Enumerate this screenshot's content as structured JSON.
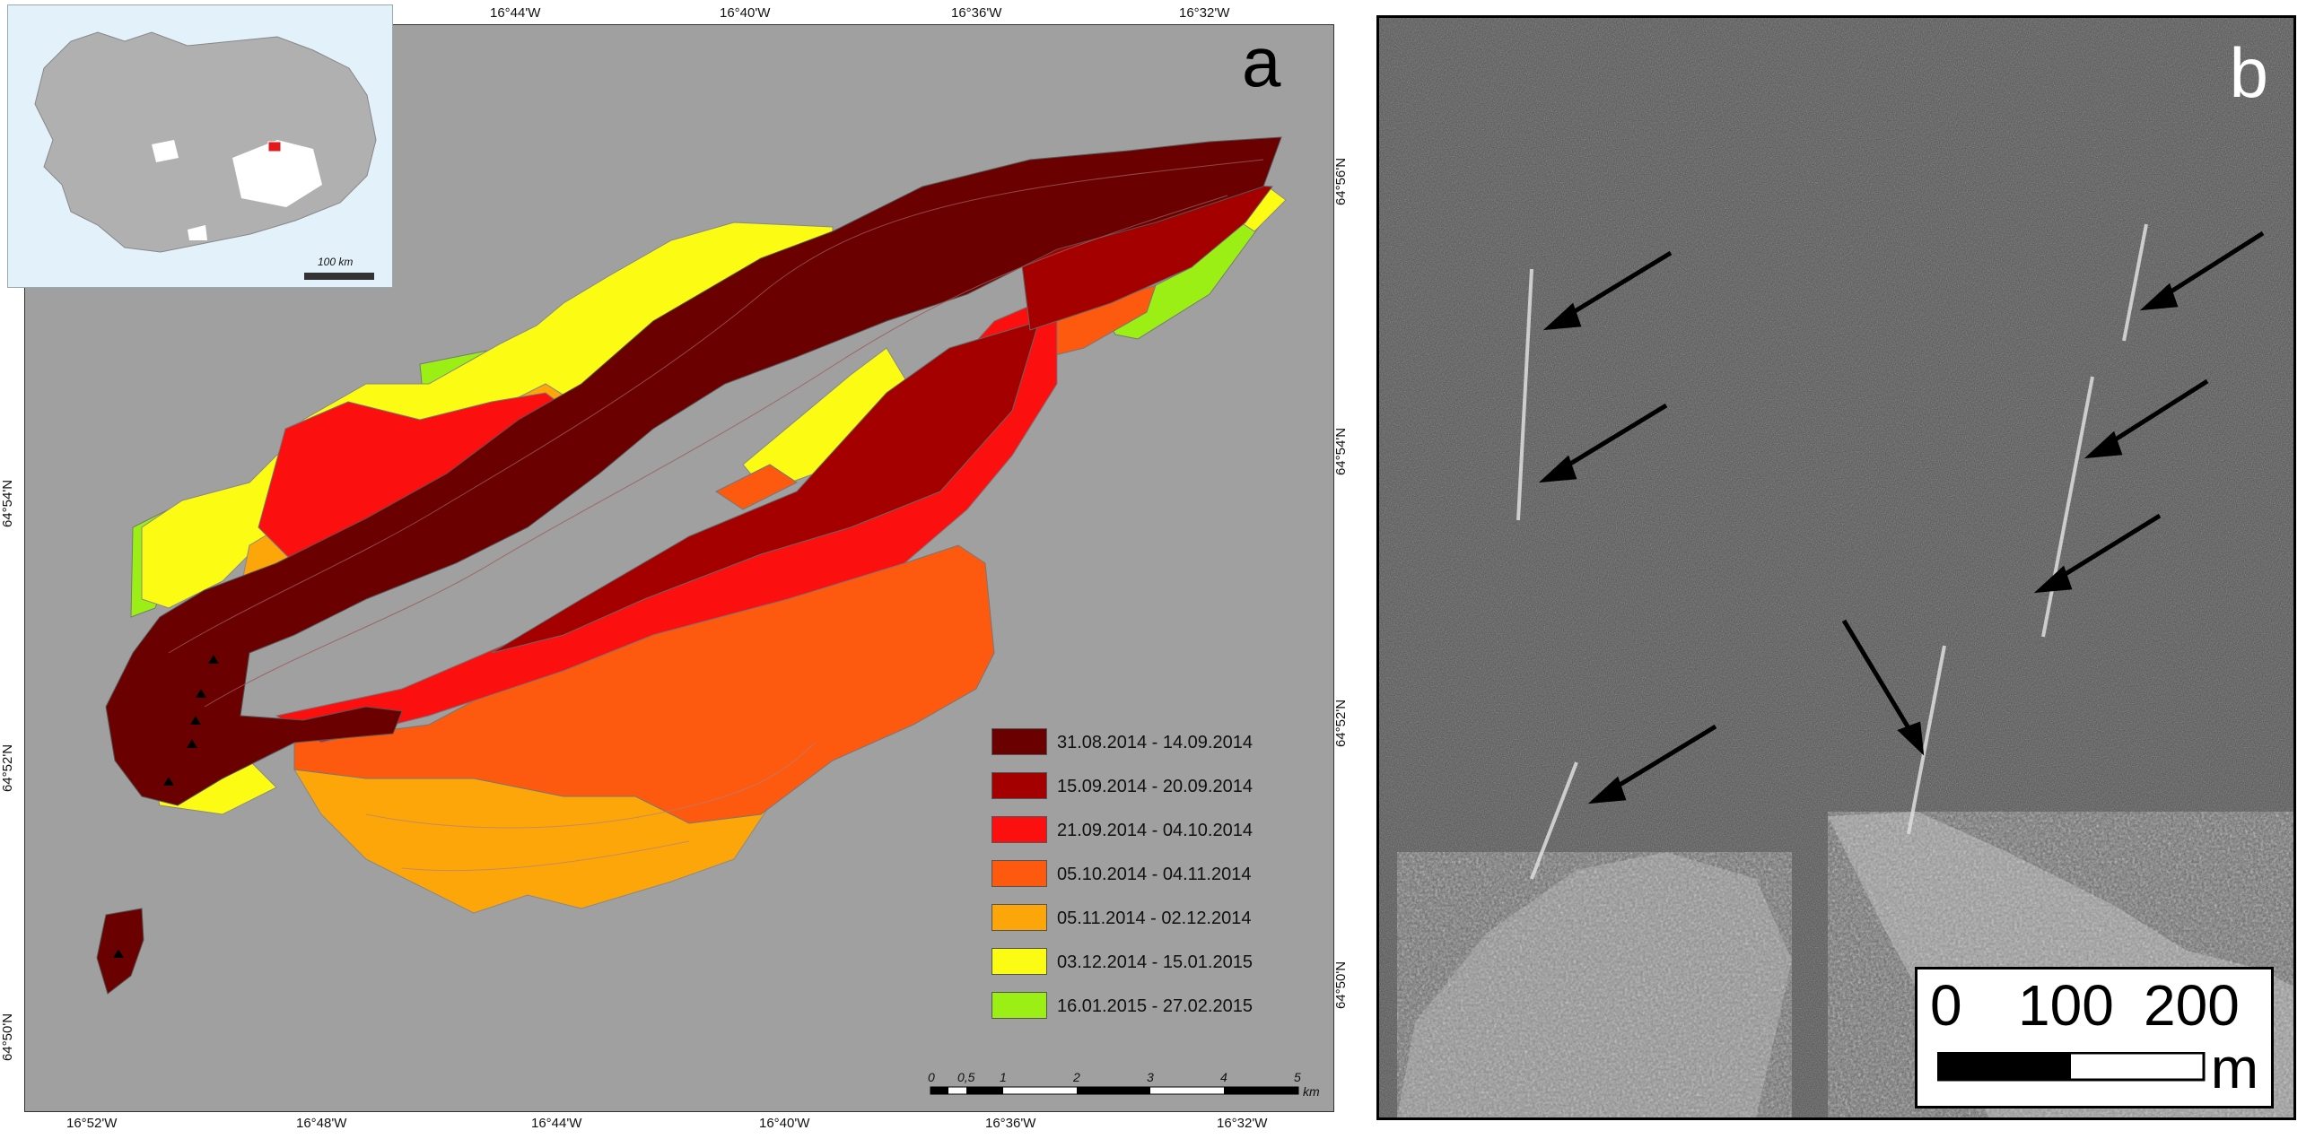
{
  "panel_a": {
    "letter": "a",
    "lon_ticks": [
      "16°52'W",
      "16°48'W",
      "16°44'W",
      "16°40'W",
      "16°36'W",
      "16°32'W"
    ],
    "top_lon_ticks": [
      "16°44'W",
      "16°40'W",
      "16°36'W",
      "16°32'W"
    ],
    "lat_ticks": [
      "64°54'N",
      "64°52'N",
      "64°50'N"
    ],
    "right_lat_ticks": [
      "64°56'N",
      "64°54'N",
      "64°52'N",
      "64°50'N"
    ],
    "background_color": "#a0a0a0",
    "inset": {
      "scale_label": "100 km",
      "land_color": "#b0b0b0",
      "sea_color": "#e3f1fb",
      "ice_color": "#ffffff",
      "marker_color": "#e31a1c"
    },
    "legend": [
      {
        "label": "31.08.2014 - 14.09.2014",
        "color": "#6b0000"
      },
      {
        "label": "15.09.2014 - 20.09.2014",
        "color": "#a50000"
      },
      {
        "label": "21.09.2014 - 04.10.2014",
        "color": "#fb0f0f"
      },
      {
        "label": "05.10.2014 - 04.11.2014",
        "color": "#fd5a0f"
      },
      {
        "label": "05.11.2014 - 02.12.2014",
        "color": "#fda60a"
      },
      {
        "label": "03.12.2014 - 15.01.2015",
        "color": "#fbfb14"
      },
      {
        "label": "16.01.2015 - 27.02.2015",
        "color": "#9cef14"
      }
    ],
    "scalebar": {
      "labels": [
        "0",
        "0,5",
        "1",
        "2",
        "3",
        "4",
        "5"
      ],
      "unit": "km"
    }
  },
  "panel_b": {
    "letter": "b",
    "scalebar": {
      "labels": [
        "0",
        "100",
        "200"
      ],
      "unit": "m"
    }
  }
}
